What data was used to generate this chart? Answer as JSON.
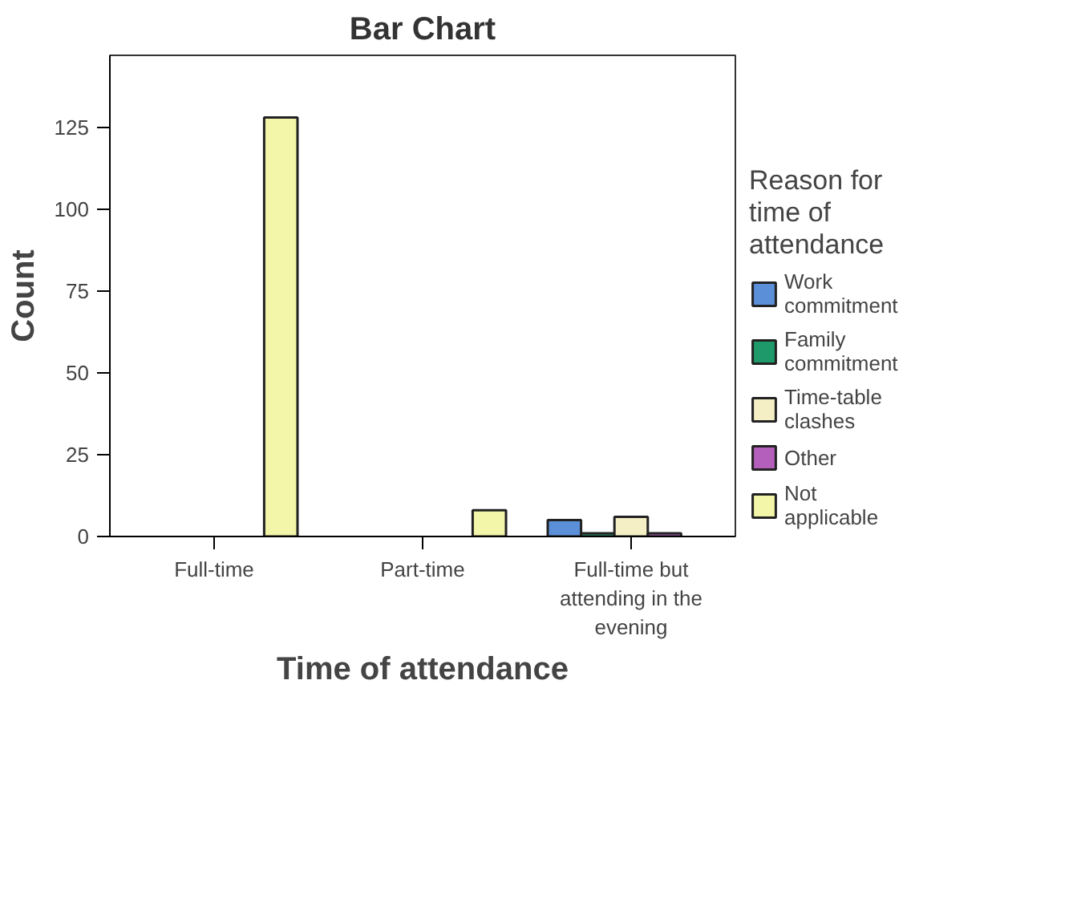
{
  "chart_data": {
    "type": "bar",
    "title": "Bar Chart",
    "xlabel": "Time of attendance",
    "ylabel": "Count",
    "legend_title": "Reason for time of attendance",
    "categories": [
      "Full-time",
      "Part-time",
      "Full-time but attending in the evening"
    ],
    "series": [
      {
        "name": "Work commitment",
        "color": "#5b8fd8",
        "values": [
          null,
          null,
          5
        ]
      },
      {
        "name": "Family commitment",
        "color": "#1e9a6a",
        "values": [
          null,
          null,
          1
        ]
      },
      {
        "name": "Time-table clashes",
        "color": "#f4efc4",
        "values": [
          null,
          null,
          6
        ]
      },
      {
        "name": "Other",
        "color": "#b55fbd",
        "values": [
          null,
          null,
          1
        ]
      },
      {
        "name": "Not applicable",
        "color": "#f3f5a8",
        "values": [
          128,
          8,
          null
        ]
      }
    ],
    "ylim": [
      0,
      147
    ],
    "yticks": [
      0,
      25,
      50,
      75,
      100,
      125
    ],
    "grid": false,
    "legend": "right"
  }
}
